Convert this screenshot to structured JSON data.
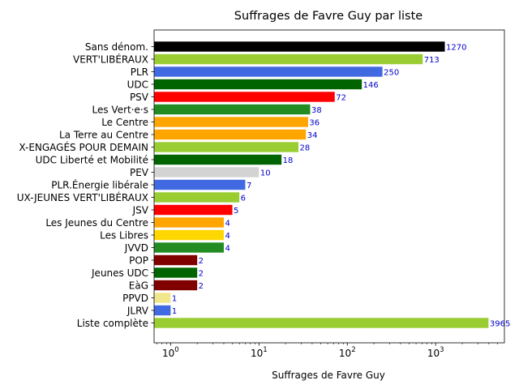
{
  "chart_data": {
    "type": "bar",
    "orientation": "horizontal",
    "title": "Suffrages de Favre Guy par liste",
    "xlabel": "Suffrages de Favre Guy",
    "ylabel": "",
    "xscale": "log",
    "xlim": [
      0.65,
      6000
    ],
    "x_ticks": [
      1,
      10,
      100,
      1000
    ],
    "x_tick_labels": [
      "10",
      "10",
      "10",
      "10"
    ],
    "x_tick_exponents": [
      "0",
      "1",
      "2",
      "3"
    ],
    "grid": false,
    "legend": "none",
    "categories": [
      "Sans dénom.",
      "VERT'LIBÉRAUX",
      "PLR",
      "UDC",
      "PSV",
      "Les Vert·e·s",
      "Le Centre",
      "La Terre au Centre",
      "X-ENGAGÉS POUR DEMAIN",
      "UDC Liberté et Mobilité",
      "PEV",
      "PLR.Énergie libérale",
      "UX-JEUNES VERT'LIBÉRAUX",
      "JSV",
      "Les Jeunes du Centre",
      "Les Libres",
      "JVVD",
      "POP",
      "Jeunes UDC",
      "EàG",
      "PPVD",
      "JLRV",
      "Liste complète"
    ],
    "values": [
      1270,
      713,
      250,
      146,
      72,
      38,
      36,
      34,
      28,
      18,
      10,
      7,
      6,
      5,
      4,
      4,
      4,
      2,
      2,
      2,
      1,
      1,
      3965
    ],
    "colors": [
      "#000000",
      "#9acd32",
      "#4169e1",
      "#006400",
      "#ff0000",
      "#228b22",
      "#ffa500",
      "#ffa500",
      "#9acd32",
      "#006400",
      "#d3d3d3",
      "#4169e1",
      "#9acd32",
      "#ff0000",
      "#ffa500",
      "#ffd700",
      "#228b22",
      "#800000",
      "#006400",
      "#800000",
      "#f0e68c",
      "#4169e1",
      "#9acd32"
    ],
    "value_label_color": "#0000cc"
  }
}
